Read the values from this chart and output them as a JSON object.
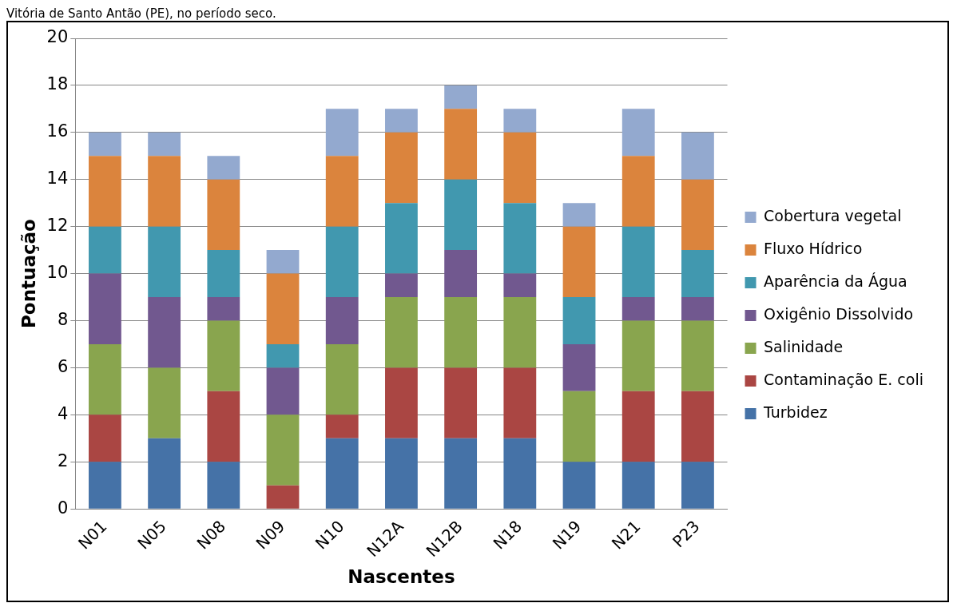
{
  "chart_data": {
    "type": "bar",
    "stacked": true,
    "xlabel": "Nascentes",
    "ylabel": "Pontuação",
    "annotations": [
      "Vitória de Santo Antão (PE), no período seco."
    ],
    "categories": [
      "N01",
      "N05",
      "N08",
      "N09",
      "N10",
      "N12A",
      "N12B",
      "N18",
      "N19",
      "N21",
      "P23"
    ],
    "ylim": [
      0,
      20
    ],
    "yticks": [
      0,
      2,
      4,
      6,
      8,
      10,
      12,
      14,
      16,
      18,
      20
    ],
    "grid": "y",
    "legend": "right",
    "series": [
      {
        "name": "Turbidez",
        "color": "#4572a7",
        "values": [
          2,
          3,
          2,
          0,
          3,
          3,
          3,
          3,
          2,
          2,
          2
        ]
      },
      {
        "name": "Contaminação E. coli",
        "color": "#aa4643",
        "values": [
          2,
          0,
          3,
          1,
          1,
          3,
          3,
          3,
          0,
          3,
          3
        ]
      },
      {
        "name": "Salinidade",
        "color": "#89a54e",
        "values": [
          3,
          3,
          3,
          3,
          3,
          3,
          3,
          3,
          3,
          3,
          3
        ]
      },
      {
        "name": "Oxigênio Dissolvido",
        "color": "#71588f",
        "values": [
          3,
          3,
          1,
          2,
          2,
          1,
          2,
          1,
          2,
          1,
          1
        ]
      },
      {
        "name": "Aparência da Água",
        "color": "#4198af",
        "values": [
          2,
          3,
          2,
          1,
          3,
          3,
          3,
          3,
          2,
          3,
          2
        ]
      },
      {
        "name": "Fluxo Hídrico",
        "color": "#db843d",
        "values": [
          3,
          3,
          3,
          3,
          3,
          3,
          3,
          3,
          3,
          3,
          3
        ]
      },
      {
        "name": "Cobertura vegetal",
        "color": "#93a9cf",
        "values": [
          1,
          1,
          1,
          1,
          2,
          1,
          1,
          1,
          1,
          2,
          2
        ]
      }
    ]
  }
}
